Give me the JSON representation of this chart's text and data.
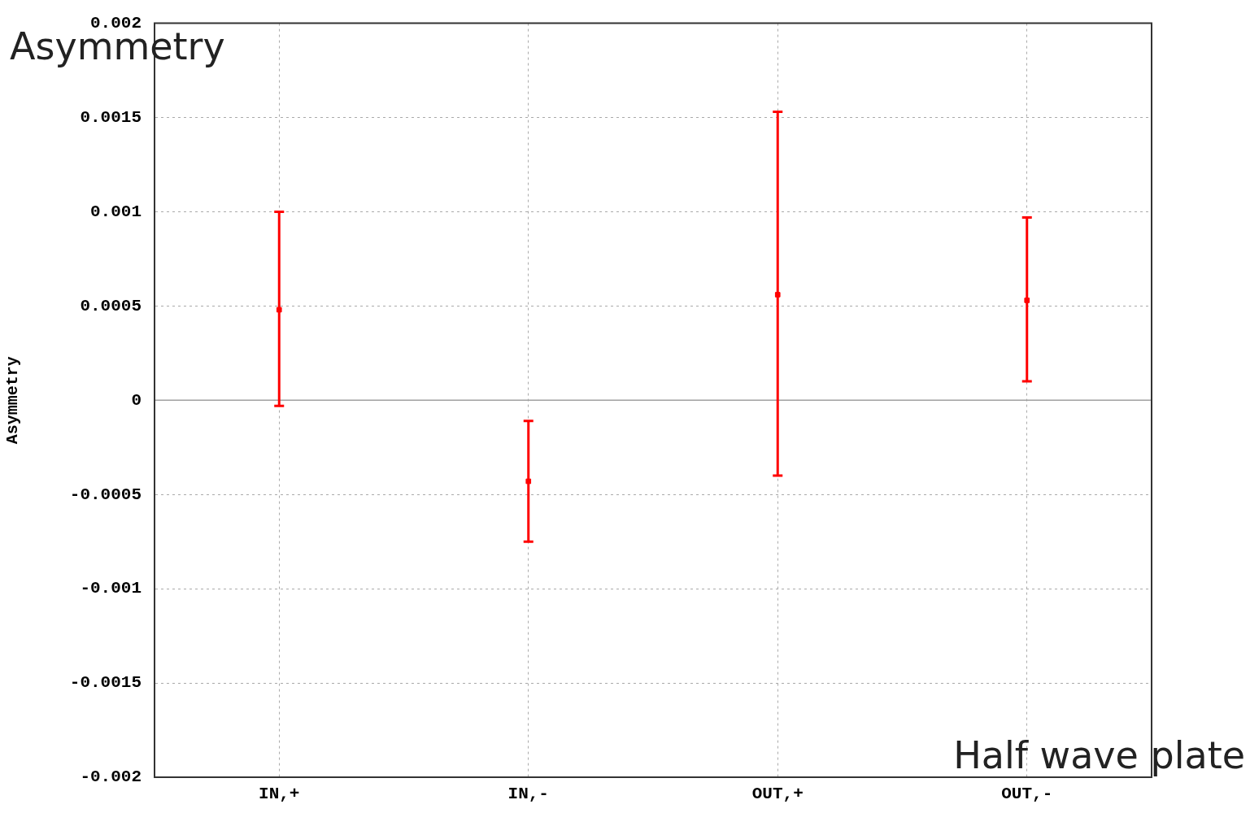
{
  "chart_data": {
    "type": "scatter",
    "title": "Asymmetry",
    "xlabel": "Half wave plate",
    "ylabel": "Asymmetry",
    "categories": [
      "IN,+",
      "IN,-",
      "OUT,+",
      "OUT,-"
    ],
    "series": [
      {
        "color": "#ff0000",
        "values": [
          0.00048,
          -0.00043,
          0.00056,
          0.00053
        ],
        "errors": [
          [
            -3e-05,
            0.001
          ],
          [
            -0.00075,
            -0.00011
          ],
          [
            -0.0004,
            0.00153
          ],
          [
            0.0001,
            0.00097
          ]
        ]
      }
    ],
    "ylim": [
      -0.002,
      0.002
    ],
    "yticks": [
      -0.002,
      -0.0015,
      -0.001,
      -0.0005,
      0,
      0.0005,
      0.001,
      0.0015,
      0.002
    ],
    "grid": true,
    "ref_lines": [
      {
        "axis": "y",
        "value": 0,
        "color": "#a0a0a0"
      }
    ]
  }
}
